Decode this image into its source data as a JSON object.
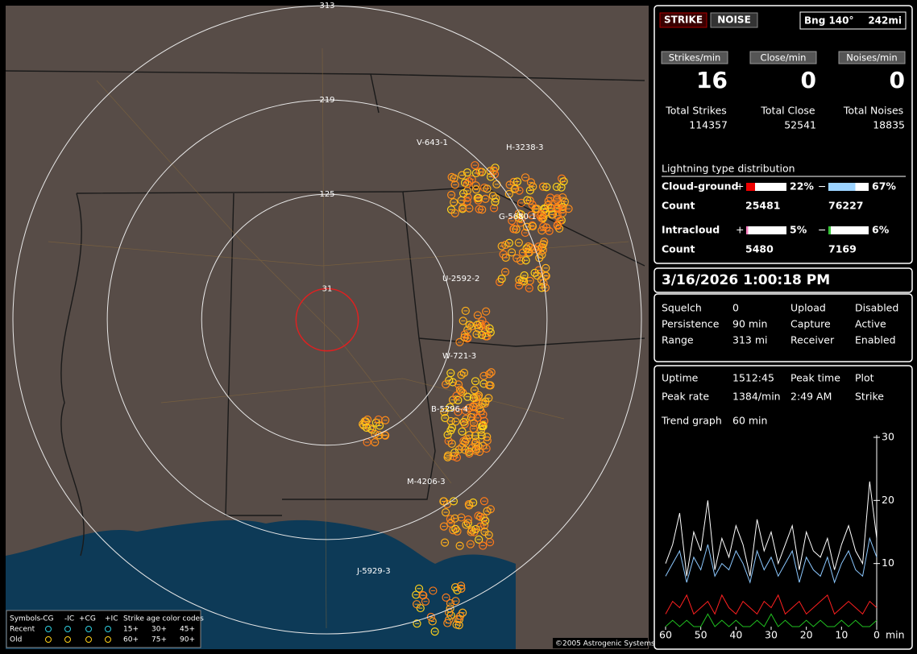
{
  "map": {
    "range_rings": [
      313,
      219,
      125,
      31
    ],
    "storm_labels": [
      "V-643-1",
      "H-3238-3",
      "G-5680-1",
      "U-2592-2",
      "W-721-3",
      "B-5296-4",
      "M-4206-3",
      "J-5929-3"
    ],
    "legend": {
      "symbols": "Symbols",
      "types": [
        "-CG",
        "-IC",
        "+CG",
        "+IC"
      ],
      "age_title": "Strike age color codes",
      "rows": [
        "Recent",
        "Old"
      ],
      "ages": [
        "15+",
        "30+",
        "45+",
        "60+",
        "75+",
        "90+"
      ]
    },
    "copyright": "©2005 Astrogenic Systems"
  },
  "panel": {
    "buttons": [
      "STRIKE",
      "NOISE"
    ],
    "bearing": "Bng 140°",
    "distance": "242mi",
    "rates": [
      {
        "label": "Strikes/min",
        "value": 16,
        "total_label": "Total Strikes",
        "total": 114357
      },
      {
        "label": "Close/min",
        "value": 0,
        "total_label": "Total Close",
        "total": 52541
      },
      {
        "label": "Noises/min",
        "value": 0,
        "total_label": "Total Noises",
        "total": 18835
      }
    ],
    "distribution": {
      "title": "Lightning type distribution",
      "count_label": "Count",
      "rows": [
        {
          "label": "Cloud-ground",
          "positive": {
            "value": 22,
            "label": "22%"
          },
          "negative": {
            "value": 67,
            "label": "67%"
          },
          "positive_count": 25481,
          "negative_count": 76227
        },
        {
          "label": "Intracloud",
          "positive": {
            "value": 5,
            "label": "5%"
          },
          "negative": {
            "value": 6,
            "label": "6%"
          },
          "positive_count": 5480,
          "negative_count": 7169
        }
      ]
    },
    "datetime": "3/16/2026 1:00:18 PM",
    "settings": [
      [
        "Squelch",
        "0",
        "Upload",
        "Disabled"
      ],
      [
        "Persistence",
        "90 min",
        "Capture",
        "Active"
      ],
      [
        "Range",
        "313 mi",
        "Receiver",
        "Enabled"
      ]
    ],
    "stats": [
      [
        "Uptime",
        "1512:45",
        "Peak time",
        "Plot"
      ],
      [
        "Peak rate",
        "1384/min",
        "2:49 AM",
        "Strike"
      ],
      [
        "Trend graph",
        "60 min"
      ]
    ]
  },
  "trend": {
    "x": [
      60,
      58,
      56,
      54,
      52,
      50,
      48,
      46,
      44,
      42,
      40,
      38,
      36,
      34,
      32,
      30,
      28,
      26,
      24,
      22,
      20,
      18,
      16,
      14,
      12,
      10,
      8,
      6,
      4,
      2,
      0
    ],
    "xlim": [
      60,
      0
    ],
    "xticks": [
      60,
      50,
      40,
      30,
      20,
      10,
      0
    ],
    "x_unit": "min",
    "ylim": [
      0,
      30
    ],
    "yticks": [
      30,
      20,
      10
    ],
    "series": [
      {
        "color": "#ffffff",
        "values": [
          10,
          13,
          18,
          8,
          15,
          12,
          20,
          9,
          14,
          11,
          16,
          13,
          8,
          17,
          12,
          15,
          10,
          13,
          16,
          9,
          15,
          12,
          11,
          14,
          9,
          13,
          16,
          12,
          10,
          23,
          14
        ]
      },
      {
        "color": "#8cc8ff",
        "values": [
          8,
          10,
          12,
          7,
          11,
          9,
          13,
          8,
          10,
          9,
          12,
          10,
          7,
          12,
          9,
          11,
          8,
          10,
          12,
          7,
          11,
          9,
          8,
          11,
          7,
          10,
          12,
          9,
          8,
          14,
          11
        ]
      },
      {
        "color": "#ff2020",
        "values": [
          2,
          4,
          3,
          5,
          2,
          3,
          4,
          2,
          5,
          3,
          2,
          4,
          3,
          2,
          4,
          3,
          5,
          2,
          3,
          4,
          2,
          3,
          4,
          5,
          2,
          3,
          4,
          3,
          2,
          4,
          3
        ]
      },
      {
        "color": "#20c020",
        "values": [
          0,
          1,
          0,
          1,
          0,
          0,
          2,
          0,
          1,
          0,
          1,
          0,
          0,
          1,
          0,
          2,
          0,
          1,
          0,
          0,
          1,
          0,
          1,
          0,
          0,
          1,
          0,
          1,
          0,
          0,
          1
        ]
      }
    ]
  }
}
